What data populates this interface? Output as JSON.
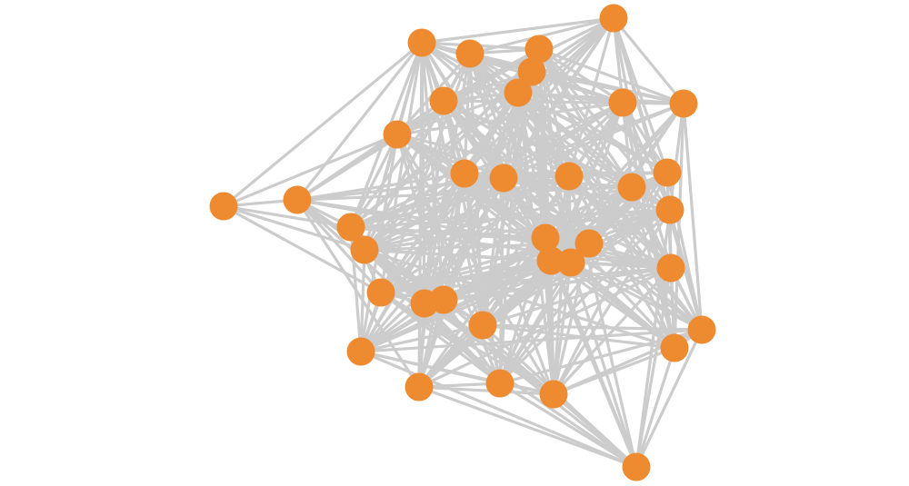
{
  "graph": {
    "node_count": 36,
    "node_color": "#ee8a30",
    "edge_color": "#cccccc",
    "node_labels_shown": false
  }
}
